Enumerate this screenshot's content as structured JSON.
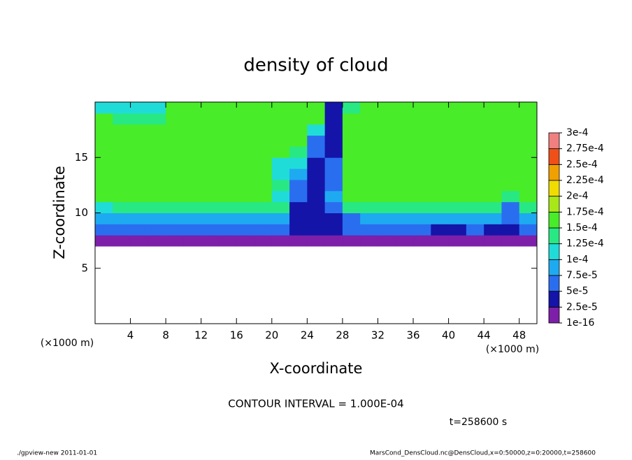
{
  "chart_data": {
    "type": "heatmap",
    "title": "density of cloud",
    "xlabel": "X-coordinate",
    "ylabel": "Z-coordinate",
    "xunit": "(×1000 m)",
    "xunit2": "(×1000 m)",
    "annotation": "CONTOUR INTERVAL = 1.000E-04",
    "time": "t=258600 s",
    "footer_left": "./gpview-new  2011-01-01",
    "footer_right": "MarsCond_DensCloud.nc@DensCloud,x=0:50000,z=0:20000,t=258600",
    "xlim": [
      0,
      50
    ],
    "ylim": [
      0,
      20
    ],
    "xticks": [
      4,
      8,
      12,
      16,
      20,
      24,
      28,
      32,
      36,
      40,
      44,
      48
    ],
    "yticks": [
      5,
      10,
      15
    ],
    "x": [
      1,
      3,
      5,
      7,
      9,
      11,
      13,
      15,
      17,
      19,
      21,
      23,
      25,
      27,
      29,
      31,
      33,
      35,
      37,
      39,
      41,
      43,
      45,
      47,
      49
    ],
    "z": [
      7.5,
      8.5,
      9.5,
      10.5,
      11.5,
      12.5,
      13.5,
      14.5,
      15.5,
      16.5,
      17.5,
      18.5,
      19.5
    ],
    "values": [
      [
        1e-05,
        1e-05,
        1e-05,
        1e-05,
        1e-05,
        1e-05,
        1e-05,
        1e-05,
        1e-05,
        1e-05,
        1e-05,
        1e-05,
        1e-05,
        1e-05,
        1e-05,
        1e-05,
        1e-05,
        1e-05,
        1e-05,
        1e-05,
        1e-05,
        1e-05,
        1e-05,
        1e-05,
        1e-05
      ],
      [
        6e-05,
        6e-05,
        6e-05,
        6e-05,
        6e-05,
        6e-05,
        6e-05,
        6e-05,
        6e-05,
        6e-05,
        6e-05,
        3e-05,
        3e-05,
        3e-05,
        6e-05,
        6e-05,
        6e-05,
        6e-05,
        6e-05,
        4e-05,
        4e-05,
        6e-05,
        3e-05,
        3e-05,
        6e-05
      ],
      [
        9e-05,
        9e-05,
        9e-05,
        9e-05,
        9e-05,
        9e-05,
        9e-05,
        9e-05,
        9e-05,
        9e-05,
        9e-05,
        3e-05,
        3e-05,
        3e-05,
        6e-05,
        9e-05,
        9e-05,
        9e-05,
        9e-05,
        9e-05,
        9e-05,
        9e-05,
        9e-05,
        5e-05,
        9e-05
      ],
      [
        0.00012,
        0.00013,
        0.00013,
        0.00013,
        0.00013,
        0.00013,
        0.00013,
        0.00013,
        0.00013,
        0.00013,
        0.00013,
        4e-05,
        3e-05,
        5e-05,
        0.00013,
        0.00013,
        0.00013,
        0.00013,
        0.00013,
        0.00013,
        0.00013,
        0.00013,
        0.00013,
        7e-05,
        0.00013
      ],
      [
        0.00016,
        0.00016,
        0.00016,
        0.00016,
        0.00016,
        0.00016,
        0.00016,
        0.00016,
        0.00016,
        0.00016,
        0.00012,
        5e-05,
        3e-05,
        8e-05,
        0.00016,
        0.00016,
        0.00016,
        0.00016,
        0.00016,
        0.00016,
        0.00016,
        0.00016,
        0.00016,
        0.00013,
        0.00016
      ],
      [
        0.00016,
        0.00016,
        0.00016,
        0.00016,
        0.00016,
        0.00016,
        0.00016,
        0.00016,
        0.00016,
        0.00016,
        0.00013,
        7e-05,
        3e-05,
        6e-05,
        0.00016,
        0.00016,
        0.00016,
        0.00016,
        0.00016,
        0.00016,
        0.00016,
        0.00016,
        0.00016,
        0.00016,
        0.00016
      ],
      [
        0.00016,
        0.00016,
        0.00016,
        0.00016,
        0.00016,
        0.00016,
        0.00016,
        0.00016,
        0.00016,
        0.00016,
        0.00012,
        9e-05,
        4e-05,
        7e-05,
        0.00016,
        0.00016,
        0.00016,
        0.00016,
        0.00016,
        0.00016,
        0.00016,
        0.00016,
        0.00016,
        0.00016,
        0.00016
      ],
      [
        0.00016,
        0.00016,
        0.00016,
        0.00016,
        0.00016,
        0.00016,
        0.00016,
        0.00016,
        0.00016,
        0.00016,
        0.00011,
        0.00012,
        3e-05,
        5e-05,
        0.00016,
        0.00016,
        0.00016,
        0.00016,
        0.00016,
        0.00016,
        0.00016,
        0.00016,
        0.00016,
        0.00016,
        0.00016
      ],
      [
        0.00015,
        0.00015,
        0.00015,
        0.00016,
        0.00016,
        0.00016,
        0.00016,
        0.00016,
        0.00016,
        0.00016,
        0.00016,
        0.00014,
        5e-05,
        4e-05,
        0.00016,
        0.00016,
        0.00016,
        0.00016,
        0.00016,
        0.00016,
        0.00016,
        0.00016,
        0.00016,
        0.00016,
        0.00016
      ],
      [
        0.00016,
        0.00016,
        0.00016,
        0.00016,
        0.00016,
        0.00016,
        0.00016,
        0.00016,
        0.00016,
        0.00016,
        0.00016,
        0.00016,
        6e-05,
        4e-05,
        0.00016,
        0.00016,
        0.00016,
        0.00016,
        0.00016,
        0.00016,
        0.00016,
        0.00016,
        0.00016,
        0.00016,
        0.00016
      ],
      [
        0.00016,
        0.00016,
        0.00016,
        0.00016,
        0.00016,
        0.00016,
        0.00016,
        0.00016,
        0.00016,
        0.00016,
        0.00016,
        0.00016,
        0.00012,
        3e-05,
        0.00016,
        0.00016,
        0.00016,
        0.00016,
        0.00016,
        0.00016,
        0.00016,
        0.00016,
        0.00016,
        0.00016,
        0.00016
      ],
      [
        0.00016,
        0.00013,
        0.00013,
        0.00013,
        0.00016,
        0.00016,
        0.00016,
        0.00016,
        0.00016,
        0.00016,
        0.00016,
        0.00016,
        0.00016,
        4e-05,
        0.00016,
        0.00016,
        0.00016,
        0.00016,
        0.00016,
        0.00016,
        0.00016,
        0.00016,
        0.00016,
        0.00016,
        0.00016
      ],
      [
        0.00011,
        0.00011,
        0.00012,
        0.00012,
        0.00016,
        0.00016,
        0.00016,
        0.00016,
        0.00016,
        0.00016,
        0.00016,
        0.00016,
        0.00016,
        3e-05,
        0.00013,
        0.00016,
        0.00016,
        0.00016,
        0.00016,
        0.00016,
        0.00016,
        0.00016,
        0.00016,
        0.00016,
        0.00016
      ]
    ],
    "colorbar": {
      "ticks": [
        {
          "value": 1e-16,
          "label": "1e-16"
        },
        {
          "value": 2.5e-05,
          "label": "2.5e-5"
        },
        {
          "value": 5e-05,
          "label": "5e-5"
        },
        {
          "value": 7.5e-05,
          "label": "7.5e-5"
        },
        {
          "value": 0.0001,
          "label": "1e-4"
        },
        {
          "value": 0.000125,
          "label": "1.25e-4"
        },
        {
          "value": 0.00015,
          "label": "1.5e-4"
        },
        {
          "value": 0.000175,
          "label": "1.75e-4"
        },
        {
          "value": 0.0002,
          "label": "2e-4"
        },
        {
          "value": 0.000225,
          "label": "2.25e-4"
        },
        {
          "value": 0.00025,
          "label": "2.5e-4"
        },
        {
          "value": 0.000275,
          "label": "2.75e-4"
        },
        {
          "value": 0.0003,
          "label": "3e-4"
        }
      ],
      "colors": [
        "#7d1fa8",
        "#1414a8",
        "#2a6ef0",
        "#1eaaf0",
        "#20dcd8",
        "#28e884",
        "#48ec28",
        "#a8e818",
        "#f0dc00",
        "#f0a000",
        "#f05018",
        "#f08080"
      ]
    }
  }
}
